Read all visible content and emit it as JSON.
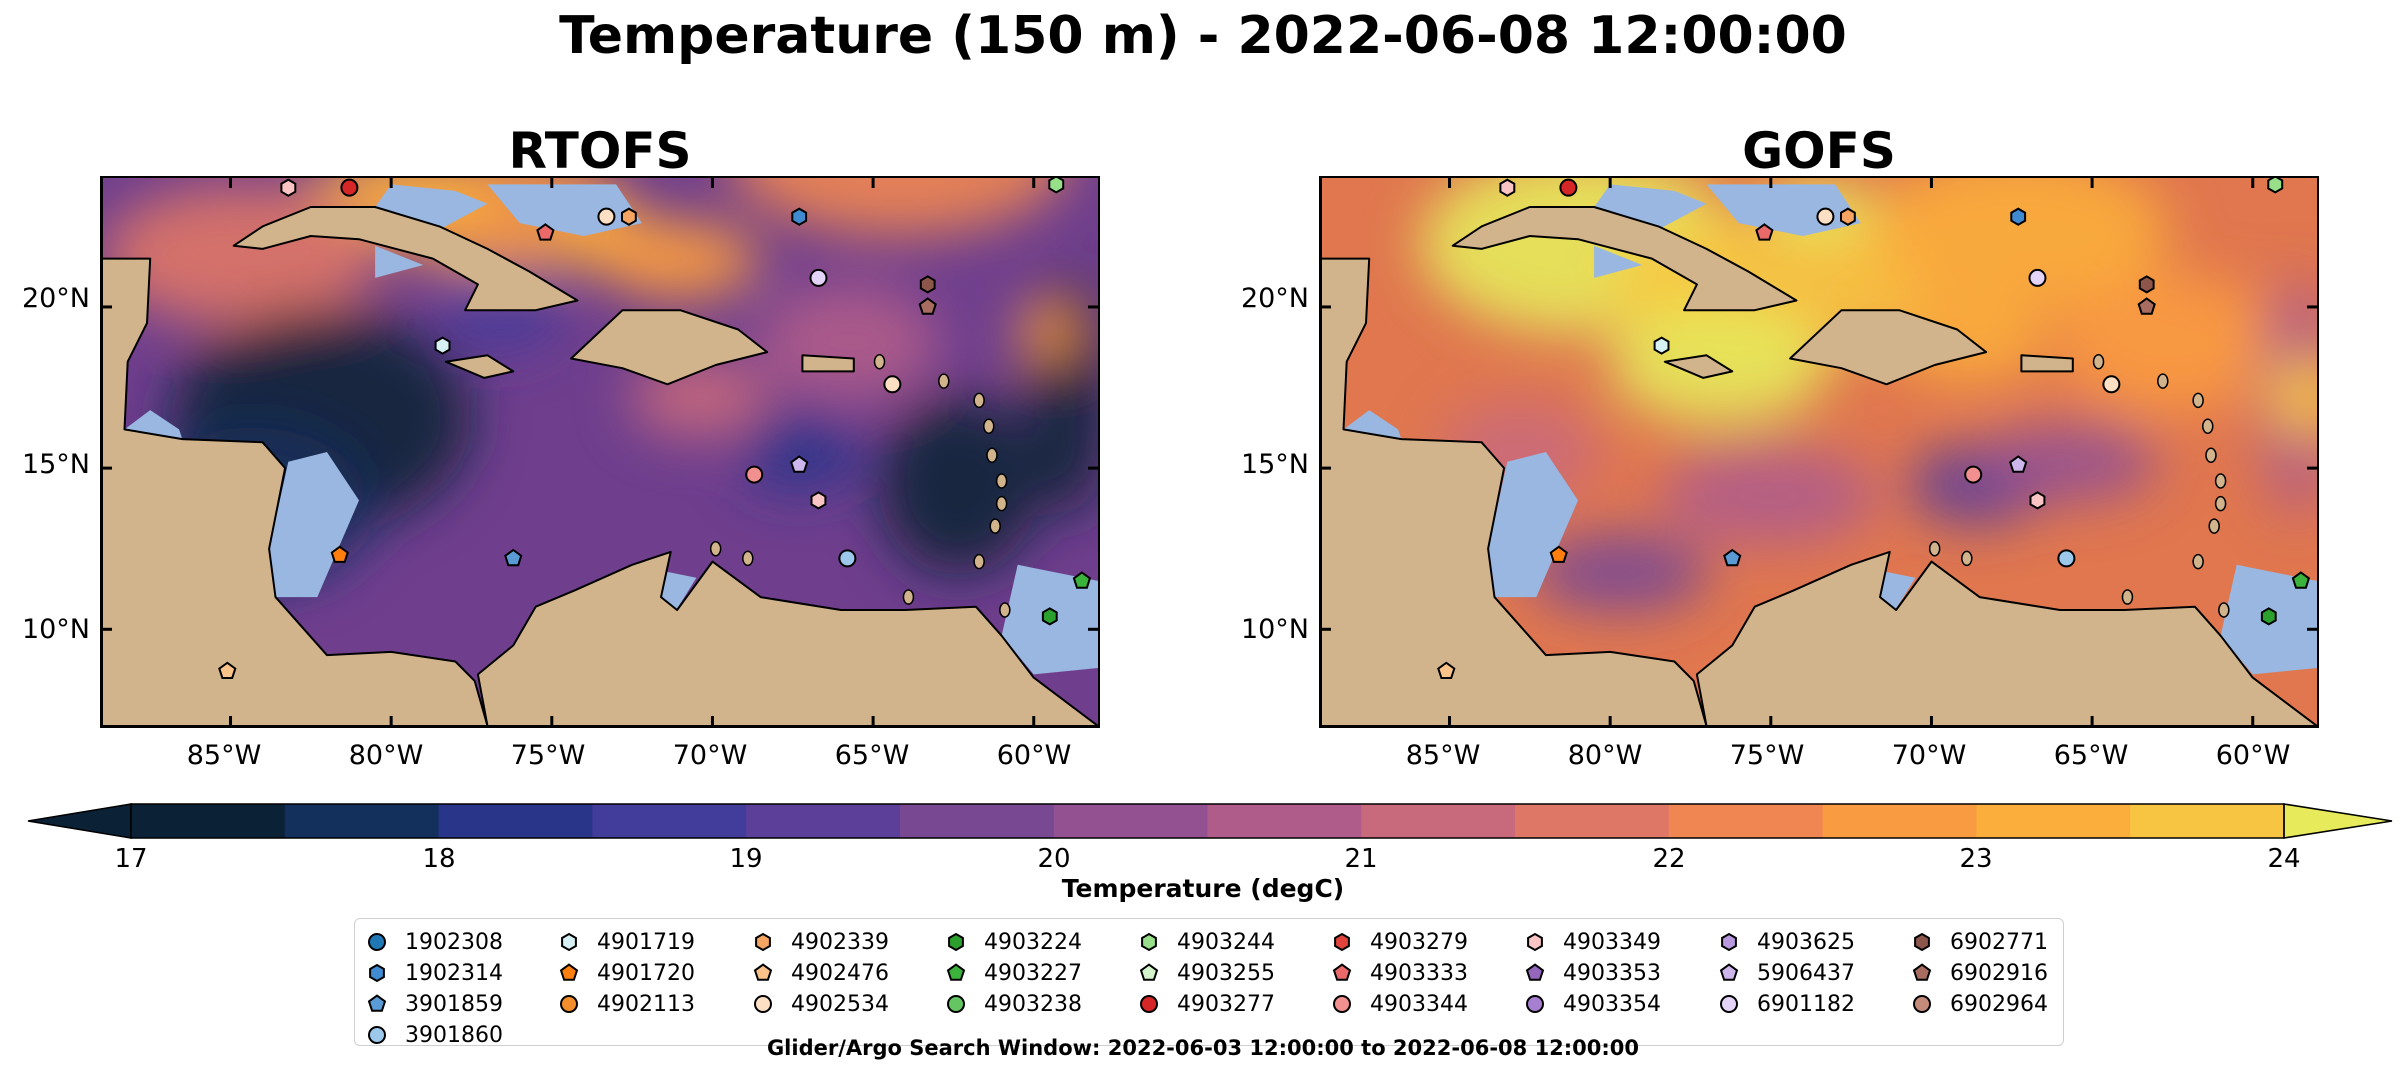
{
  "title": "Temperature (150 m) - 2022-06-08 12:00:00",
  "panels": [
    {
      "title": "RTOFS",
      "palette": "cool"
    },
    {
      "title": "GOFS",
      "palette": "warm"
    }
  ],
  "y_axis_labels": [
    "20°N",
    "15°N",
    "10°N"
  ],
  "x_axis_labels": [
    "85°W",
    "80°W",
    "75°W",
    "70°W",
    "65°W",
    "60°W"
  ],
  "colorbar": {
    "label": "Temperature (degC)",
    "ticks": [
      "17",
      "18",
      "19",
      "20",
      "21",
      "22",
      "23",
      "24"
    ],
    "min": 17,
    "max": 24,
    "extend": "both",
    "colors": [
      "#0b2236",
      "#132f5c",
      "#293589",
      "#423c9a",
      "#5b3f99",
      "#784893",
      "#935192",
      "#b05c8a",
      "#c96a7c",
      "#df7767",
      "#f08752",
      "#f99b41",
      "#fbae3c",
      "#f7c541",
      "#e6ea5b"
    ]
  },
  "legend": {
    "items": [
      {
        "label": "1902308",
        "marker": "circle",
        "color": "#1f77b4"
      },
      {
        "label": "1902314",
        "marker": "hexagon",
        "color": "#3f8ad0"
      },
      {
        "label": "3901859",
        "marker": "pentagon",
        "color": "#5b9bd5"
      },
      {
        "label": "3901860",
        "marker": "circle",
        "color": "#9cc8ec"
      },
      {
        "label": "4901719",
        "marker": "hexagon",
        "color": "#d6f0f4"
      },
      {
        "label": "4901720",
        "marker": "pentagon",
        "color": "#ff7f0e"
      },
      {
        "label": "4902113",
        "marker": "circle",
        "color": "#f28e2b"
      },
      {
        "label": "4902339",
        "marker": "hexagon",
        "color": "#f5a561"
      },
      {
        "label": "4902476",
        "marker": "pentagon",
        "color": "#fbc28a"
      },
      {
        "label": "4902534",
        "marker": "circle",
        "color": "#fde0c4"
      },
      {
        "label": "4903224",
        "marker": "hexagon",
        "color": "#2ca02c"
      },
      {
        "label": "4903227",
        "marker": "pentagon",
        "color": "#3bb23b"
      },
      {
        "label": "4903238",
        "marker": "circle",
        "color": "#63c663"
      },
      {
        "label": "4903244",
        "marker": "hexagon",
        "color": "#98df8a"
      },
      {
        "label": "4903255",
        "marker": "pentagon",
        "color": "#d4f5cc"
      },
      {
        "label": "4903277",
        "marker": "circle",
        "color": "#d62728"
      },
      {
        "label": "4903279",
        "marker": "hexagon",
        "color": "#e0443d"
      },
      {
        "label": "4903333",
        "marker": "pentagon",
        "color": "#ea6a6a"
      },
      {
        "label": "4903344",
        "marker": "circle",
        "color": "#f28f8f"
      },
      {
        "label": "4903349",
        "marker": "hexagon",
        "color": "#fbc4c4"
      },
      {
        "label": "4903353",
        "marker": "pentagon",
        "color": "#9467bd"
      },
      {
        "label": "4903354",
        "marker": "circle",
        "color": "#a77fd0"
      },
      {
        "label": "4903625",
        "marker": "hexagon",
        "color": "#b899e0"
      },
      {
        "label": "5906437",
        "marker": "pentagon",
        "color": "#cdb6ec"
      },
      {
        "label": "6901182",
        "marker": "circle",
        "color": "#e3d4f7"
      },
      {
        "label": "6902771",
        "marker": "hexagon",
        "color": "#8c564b"
      },
      {
        "label": "6902916",
        "marker": "pentagon",
        "color": "#a86d60"
      },
      {
        "label": "6902964",
        "marker": "circle",
        "color": "#c48a7a"
      }
    ]
  },
  "footer": "Glider/Argo Search Window: 2022-06-03 12:00:00 to 2022-06-08 12:00:00",
  "floats": [
    {
      "id": "4903349",
      "lon": -83.2,
      "lat": 23.7
    },
    {
      "id": "4903277",
      "lon": -81.3,
      "lat": 23.7
    },
    {
      "id": "4903333",
      "lon": -75.2,
      "lat": 22.3
    },
    {
      "id": "4902534",
      "lon": -73.3,
      "lat": 22.8
    },
    {
      "id": "4902339",
      "lon": -72.6,
      "lat": 22.8
    },
    {
      "id": "1902314",
      "lon": -67.3,
      "lat": 22.8
    },
    {
      "id": "4903244",
      "lon": -59.3,
      "lat": 23.8
    },
    {
      "id": "6902771",
      "lon": -63.3,
      "lat": 20.7
    },
    {
      "id": "6902916",
      "lon": -63.3,
      "lat": 20.0
    },
    {
      "id": "6901182",
      "lon": -66.7,
      "lat": 20.9
    },
    {
      "id": "4901719",
      "lon": -78.4,
      "lat": 18.8
    },
    {
      "id": "4902534",
      "lon": -64.4,
      "lat": 17.6
    },
    {
      "id": "5906437",
      "lon": -67.3,
      "lat": 15.1
    },
    {
      "id": "4903344",
      "lon": -68.7,
      "lat": 14.8
    },
    {
      "id": "4903349",
      "lon": -66.7,
      "lat": 14.0
    },
    {
      "id": "3901860",
      "lon": -65.8,
      "lat": 12.2
    },
    {
      "id": "3901859",
      "lon": -76.2,
      "lat": 12.2
    },
    {
      "id": "4901720",
      "lon": -81.6,
      "lat": 12.3
    },
    {
      "id": "4903227",
      "lon": -58.5,
      "lat": 11.5
    },
    {
      "id": "4903224",
      "lon": -59.5,
      "lat": 10.4
    },
    {
      "id": "4902476",
      "lon": -85.1,
      "lat": 8.7
    }
  ]
}
